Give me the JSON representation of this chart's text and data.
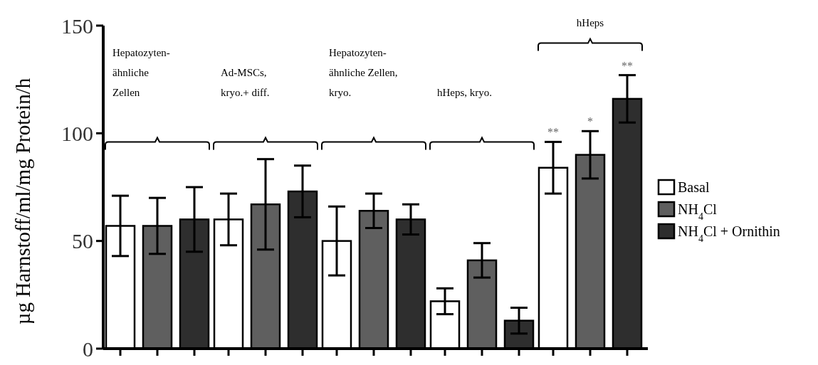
{
  "chart_data": {
    "type": "bar",
    "ylabel": "µg Harnstoff/ml/mg Protein/h",
    "categories": [
      "Hepatozyten-\nähnliche\nZellen",
      "Ad-MSCs,\nkryo.+ diff.",
      "Hepatozyten-\nähnliche Zellen,\nkryo.",
      "hHeps, kryo.",
      "hHeps"
    ],
    "series": [
      {
        "name": "Basal",
        "color": "#ffffff",
        "values": [
          57,
          60,
          50,
          22,
          84
        ],
        "errors": [
          14,
          12,
          16,
          6,
          12
        ]
      },
      {
        "name": "NH$_{4}$Cl",
        "color": "#5f5f5f",
        "values": [
          57,
          67,
          64,
          41,
          90
        ],
        "errors": [
          13,
          21,
          8,
          8,
          11
        ]
      },
      {
        "name": "NH$_{4}$Cl + Ornithin",
        "color": "#2e2e2e",
        "values": [
          60,
          73,
          60,
          13,
          116
        ],
        "errors": [
          15,
          12,
          7,
          6,
          11
        ]
      }
    ],
    "ylim": [
      0,
      150
    ],
    "yticks": [
      0,
      50,
      100,
      150
    ],
    "grid": false,
    "legend": "right",
    "annotations": [
      "**",
      "*",
      "**"
    ]
  }
}
